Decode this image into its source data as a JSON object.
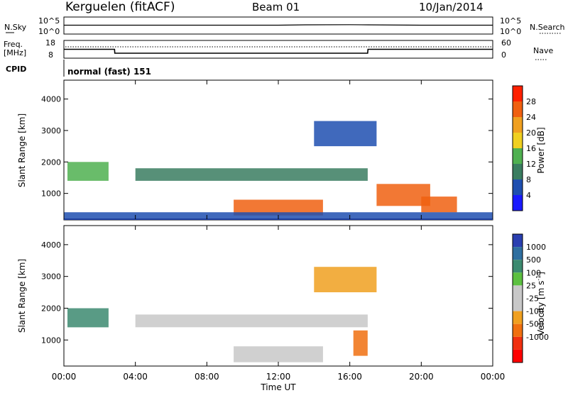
{
  "header": {
    "station": "Kerguelen (fitACF)",
    "beam": "Beam 01",
    "date": "10/Jan/2014"
  },
  "noise_panel": {
    "left_label": "N.Sky",
    "right_label": "N.Search",
    "left_ticks": [
      "10^5",
      "10^0"
    ],
    "right_ticks": [
      "10^5",
      "10^0"
    ]
  },
  "freq_panel": {
    "left_label_1": "Freq.",
    "left_label_2": "[MHz]",
    "left_ticks": [
      "18",
      "8"
    ],
    "right_label": "Nave",
    "right_ticks": [
      "60",
      "0"
    ]
  },
  "cpid": {
    "label": "CPID",
    "value": "normal (fast) 151"
  },
  "colors": {
    "power_scale": [
      "#1a1aff",
      "#1f4fb0",
      "#3a7d60",
      "#4fb050",
      "#f0d020",
      "#f0a020",
      "#f06010",
      "#ff2000"
    ],
    "velocity_scale": [
      "#2a3fb0",
      "#2f6fa0",
      "#3c8a70",
      "#5cc040",
      "#c8c8c8",
      "#c8c8c8",
      "#f0a020",
      "#f07010",
      "#f03010",
      "#ff0000"
    ],
    "ground_scatter": "#c8c8c8"
  },
  "chart_data": [
    {
      "type": "line",
      "name": "noise",
      "x": [
        "00:00",
        "04:00",
        "08:00",
        "12:00",
        "13:30",
        "16:00",
        "17:00",
        "20:00",
        "24:00"
      ],
      "series": [
        {
          "name": "N.Sky",
          "values": [
            2.6,
            2.6,
            2.6,
            2.6,
            2.7,
            2.75,
            2.7,
            2.6,
            2.6
          ]
        }
      ],
      "ylim": [
        0,
        5
      ]
    },
    {
      "type": "line",
      "name": "frequency",
      "x": [
        "00:00",
        "02:50",
        "02:51",
        "17:00",
        "17:01",
        "24:00"
      ],
      "series": [
        {
          "name": "Freq. [MHz]",
          "values": [
            13,
            13,
            10.8,
            10.8,
            13,
            13
          ]
        }
      ],
      "ylim": [
        8,
        18
      ]
    },
    {
      "type": "heatmap",
      "name": "power",
      "title": "",
      "xlabel": "Time UT",
      "ylabel": "Slant Range [km]",
      "x_ticks": [
        "00:00",
        "04:00",
        "08:00",
        "12:00",
        "16:00",
        "20:00",
        "00:00"
      ],
      "y_ticks": [
        "1000",
        "2000",
        "3000",
        "4000"
      ],
      "xlim": [
        0,
        24
      ],
      "ylim": [
        180,
        4600
      ],
      "colorbar_label": "Power [dB]",
      "colorbar_ticks": [
        "4",
        "8",
        "12",
        "16",
        "20",
        "24",
        "28"
      ],
      "regions": [
        {
          "t": [
            9.5,
            14.5
          ],
          "r": [
            300,
            800
          ],
          "power": 27
        },
        {
          "t": [
            17.5,
            20.5
          ],
          "r": [
            600,
            1300
          ],
          "power": 24
        },
        {
          "t": [
            20.0,
            22.0
          ],
          "r": [
            400,
            900
          ],
          "power": 26
        },
        {
          "t": [
            4.0,
            17.0
          ],
          "r": [
            1400,
            1800
          ],
          "power": 10
        },
        {
          "t": [
            0.2,
            2.5
          ],
          "r": [
            1400,
            2000
          ],
          "power": 14
        },
        {
          "t": [
            14.0,
            17.5
          ],
          "r": [
            2500,
            3300
          ],
          "power": 6
        },
        {
          "t": [
            0.0,
            24.0
          ],
          "r": [
            200,
            400
          ],
          "power": 5
        }
      ]
    },
    {
      "type": "heatmap",
      "name": "velocity",
      "title": "",
      "xlabel": "Time UT",
      "ylabel": "Slant Range [km]",
      "x_ticks": [
        "00:00",
        "04:00",
        "08:00",
        "12:00",
        "16:00",
        "20:00",
        "00:00"
      ],
      "y_ticks": [
        "1000",
        "2000",
        "3000",
        "4000"
      ],
      "xlim": [
        0,
        24
      ],
      "ylim": [
        180,
        4600
      ],
      "colorbar_label": "Velocity [m s^-1]",
      "colorbar_ticks": [
        "1000",
        "500",
        "100",
        "25",
        "-25",
        "-100",
        "-500",
        "-1000"
      ],
      "regions": [
        {
          "t": [
            0.2,
            2.5
          ],
          "r": [
            1400,
            2000
          ],
          "velocity": 200
        },
        {
          "t": [
            4.0,
            17.0
          ],
          "r": [
            1400,
            1800
          ],
          "velocity": 0
        },
        {
          "t": [
            9.5,
            14.5
          ],
          "r": [
            300,
            800
          ],
          "velocity": 0
        },
        {
          "t": [
            14.0,
            17.5
          ],
          "r": [
            2500,
            3300
          ],
          "velocity": -80
        },
        {
          "t": [
            16.2,
            17.0
          ],
          "r": [
            500,
            1300
          ],
          "velocity": -300
        }
      ]
    }
  ]
}
